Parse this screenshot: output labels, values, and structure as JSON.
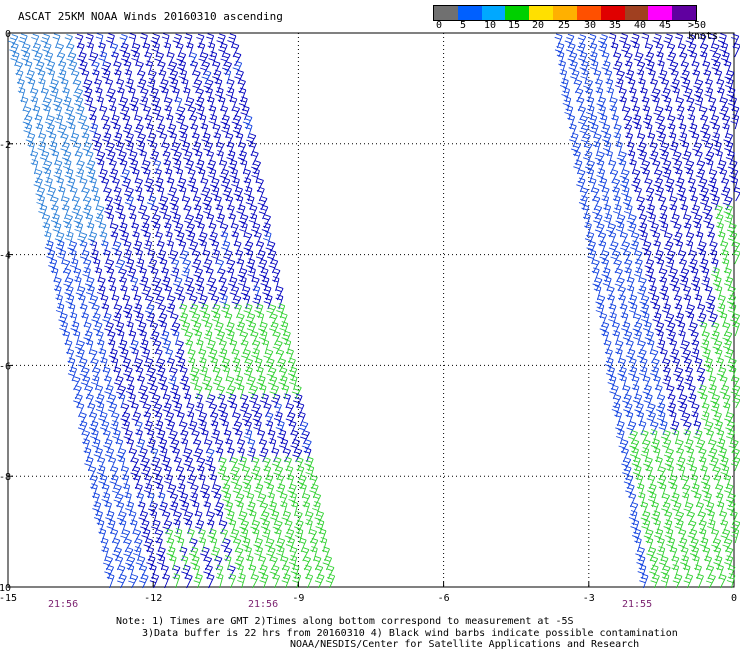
{
  "title": "ASCAT 25KM NOAA Winds 20160310 ascending",
  "colorbar": {
    "labels": [
      "0",
      "5",
      "10",
      "15",
      "20",
      "25",
      "30",
      "35",
      "40",
      "45",
      ">50 knots"
    ],
    "colors": [
      "#707070",
      "#0060ff",
      "#00a8ff",
      "#00d000",
      "#ffe000",
      "#ffb000",
      "#ff5000",
      "#e00000",
      "#a04020",
      "#ff00ff",
      "#6000a0"
    ]
  },
  "axes": {
    "lon_ticks": [
      "-15",
      "-12",
      "-9",
      "-6",
      "-3",
      "0"
    ],
    "lat_ticks": [
      "0",
      "-2",
      "-4",
      "-6",
      "-8",
      "-10"
    ]
  },
  "times": [
    "21:56",
    "21:56",
    "21:55"
  ],
  "notes": [
    "Note: 1) Times are GMT 2)Times along bottom correspond to measurement at -5S",
    "3)Data buffer is 22 hrs from 20160310 4) Black wind barbs indicate possible contamination",
    "NOAA/NESDIS/Center for Satellite Applications and Research"
  ],
  "swaths": [
    {
      "name": "west-swath"
    },
    {
      "name": "east-swath"
    }
  ],
  "colors": {
    "blue_dark": "#0000c0",
    "blue_mid": "#1040e0",
    "blue_light": "#2a7fd8",
    "green": "#30d030",
    "grid": "#000000"
  }
}
